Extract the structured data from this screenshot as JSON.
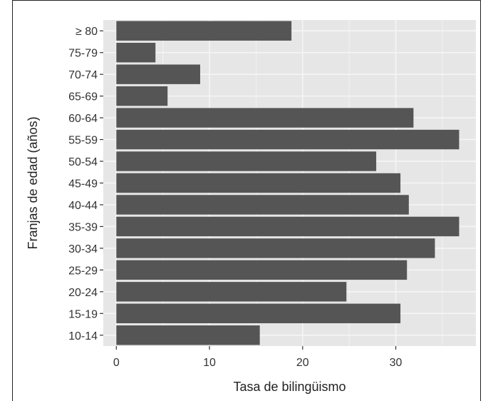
{
  "chart_data": {
    "type": "bar",
    "orientation": "horizontal",
    "categories": [
      "10-14",
      "15-19",
      "20-24",
      "25-29",
      "30-34",
      "35-39",
      "40-44",
      "45-49",
      "50-54",
      "55-59",
      "60-64",
      "65-69",
      "70-74",
      "75-79",
      "≥ 80"
    ],
    "values": [
      15.4,
      30.5,
      24.7,
      31.2,
      34.2,
      36.8,
      31.4,
      30.5,
      27.9,
      36.8,
      31.9,
      5.5,
      9.0,
      4.2,
      18.8
    ],
    "xlabel": "Tasa de bilingüismo",
    "ylabel": "Franjas de edad (años)",
    "xlim": [
      -1.4,
      38.6
    ],
    "xticks": [
      0,
      10,
      20,
      30
    ],
    "grid": true,
    "colors": {
      "bar": "#555555",
      "panel": "#e6e6e6",
      "grid": "#f5f5f5"
    }
  }
}
